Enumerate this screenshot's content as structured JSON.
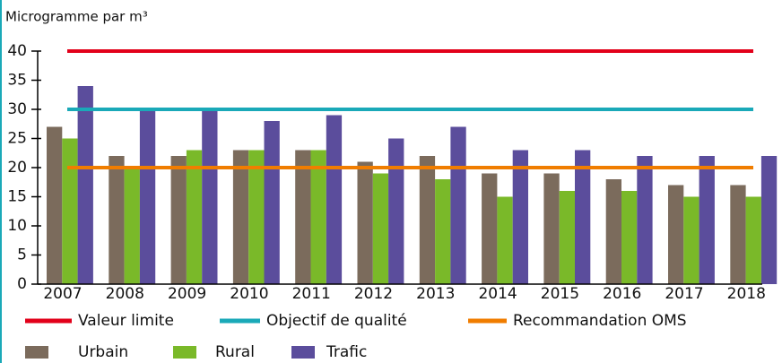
{
  "chart_data": {
    "type": "bar",
    "y_axis_label": "Microgramme par m³",
    "categories": [
      "2007",
      "2008",
      "2009",
      "2010",
      "2011",
      "2012",
      "2013",
      "2014",
      "2015",
      "2016",
      "2017",
      "2018"
    ],
    "series": [
      {
        "name": "Urbain",
        "color": "#7b6b5c",
        "values": [
          27,
          22,
          22,
          23,
          23,
          21,
          22,
          19,
          19,
          18,
          17,
          17
        ]
      },
      {
        "name": "Rural",
        "color": "#7ab929",
        "values": [
          25,
          20,
          23,
          23,
          23,
          19,
          18,
          15,
          16,
          16,
          15,
          15
        ]
      },
      {
        "name": "Trafic",
        "color": "#5b4d9c",
        "values": [
          34,
          30,
          30,
          28,
          29,
          25,
          27,
          23,
          23,
          22,
          22,
          22
        ]
      }
    ],
    "reference_lines": [
      {
        "name": "Valeur limite",
        "color": "#e2001a",
        "value": 40
      },
      {
        "name": "Objectif de qualité",
        "color": "#1aa9b8",
        "value": 30
      },
      {
        "name": "Recommandation OMS",
        "color": "#f07d00",
        "value": 20
      }
    ],
    "ylim": [
      0,
      40
    ],
    "yticks": [
      0,
      5,
      10,
      15,
      20,
      25,
      30,
      35,
      40
    ]
  }
}
